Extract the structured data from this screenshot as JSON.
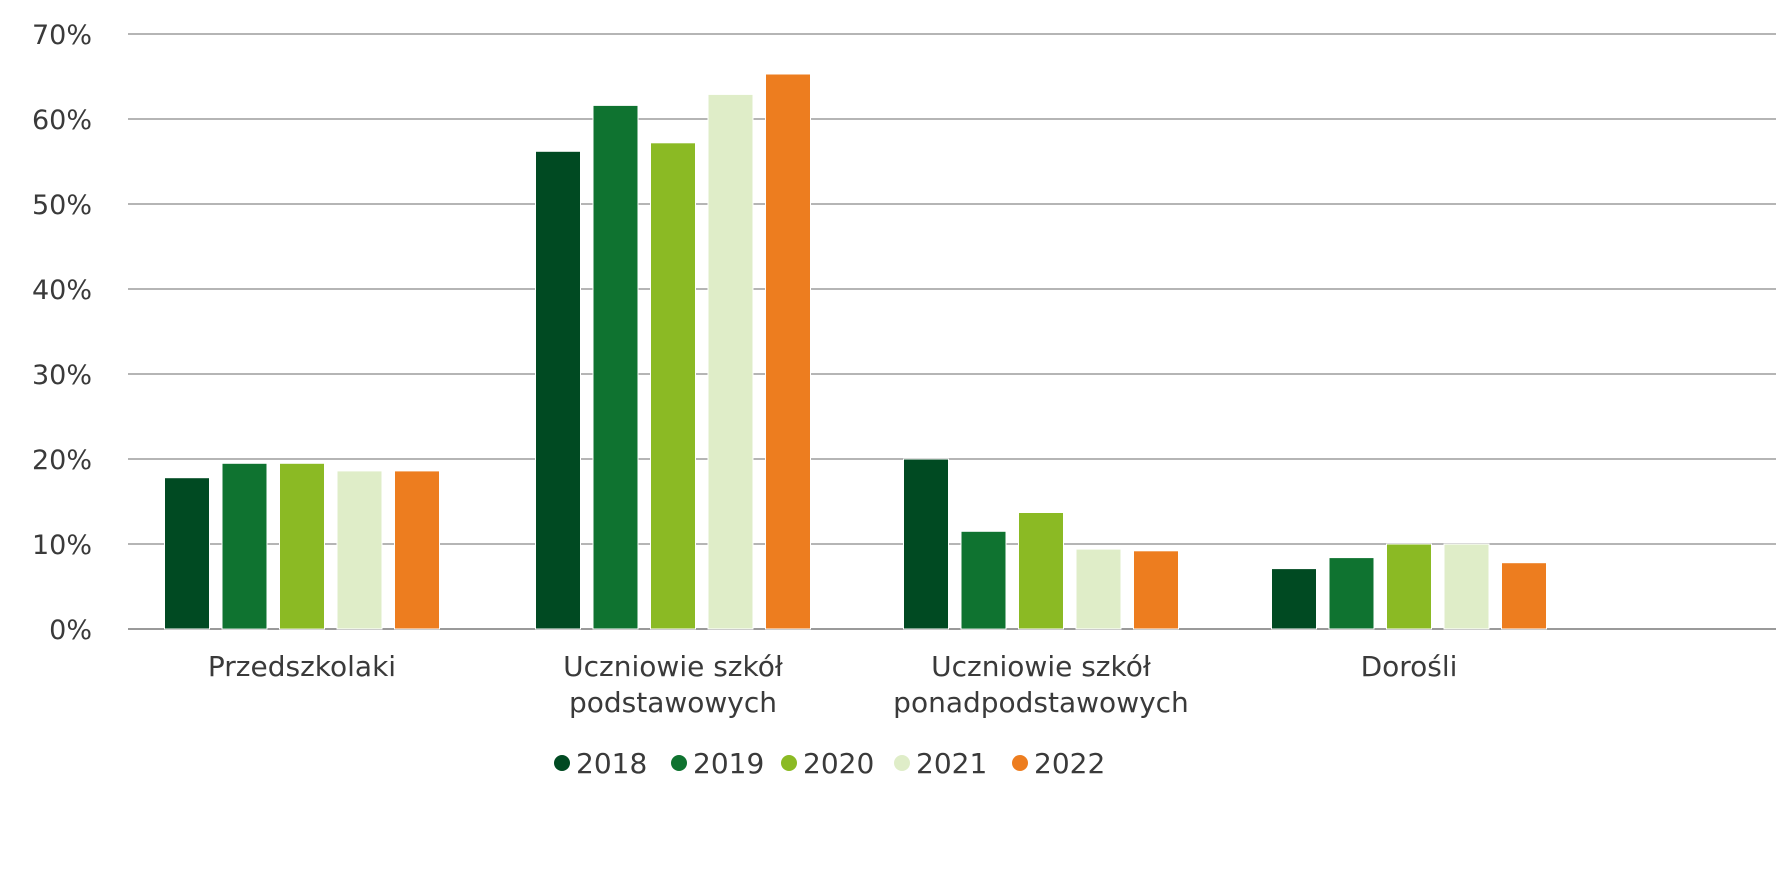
{
  "chart_data": {
    "type": "bar",
    "title": "",
    "xlabel": "",
    "ylabel": "",
    "ylim": [
      0,
      70
    ],
    "yticks": [
      "0%",
      "10%",
      "20%",
      "30%",
      "40%",
      "50%",
      "60%",
      "70%"
    ],
    "grid": true,
    "legend_position": "bottom",
    "categories": [
      [
        "Przedszkolaki"
      ],
      [
        "Uczniowie szkół",
        "podstawowych"
      ],
      [
        "Uczniowie szkół",
        "ponadpodstawowych"
      ],
      [
        "Dorośli"
      ]
    ],
    "series": [
      {
        "name": "2018",
        "color": "#004a22",
        "values": [
          17.8,
          56.2,
          20.0,
          7.1
        ]
      },
      {
        "name": "2019",
        "color": "#0f7330",
        "values": [
          19.5,
          61.6,
          11.5,
          8.4
        ]
      },
      {
        "name": "2020",
        "color": "#8bba24",
        "values": [
          19.5,
          57.2,
          13.7,
          10.0
        ]
      },
      {
        "name": "2021",
        "color": "#dfedc8",
        "values": [
          18.6,
          62.9,
          9.4,
          10.0
        ]
      },
      {
        "name": "2022",
        "color": "#ed7d1f",
        "values": [
          18.6,
          65.3,
          9.2,
          7.8
        ]
      }
    ]
  }
}
